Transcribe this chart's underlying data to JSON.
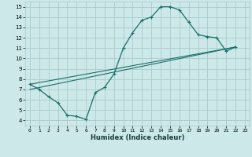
{
  "xlabel": "Humidex (Indice chaleur)",
  "bg_color": "#cce8e8",
  "grid_color": "#aacccc",
  "line_color": "#1a6e6a",
  "xlim": [
    -0.5,
    23.5
  ],
  "ylim": [
    3.5,
    15.5
  ],
  "xticks": [
    0,
    1,
    2,
    3,
    4,
    5,
    6,
    7,
    8,
    9,
    10,
    11,
    12,
    13,
    14,
    15,
    16,
    17,
    18,
    19,
    20,
    21,
    22,
    23
  ],
  "yticks": [
    4,
    5,
    6,
    7,
    8,
    9,
    10,
    11,
    12,
    13,
    14,
    15
  ],
  "main_x": [
    0,
    1,
    2,
    3,
    4,
    5,
    6,
    7,
    8,
    9,
    10,
    11,
    12,
    13,
    14,
    15,
    16,
    17,
    18,
    19,
    20,
    21,
    22
  ],
  "main_y": [
    7.5,
    7.0,
    6.3,
    5.7,
    4.5,
    4.4,
    4.1,
    6.7,
    7.2,
    8.5,
    11.0,
    12.5,
    13.7,
    14.0,
    15.0,
    15.0,
    14.7,
    13.5,
    12.3,
    12.1,
    12.0,
    10.7,
    11.1
  ],
  "trend1_x": [
    0,
    22
  ],
  "trend1_y": [
    7.5,
    11.1
  ],
  "trend2_x": [
    0,
    22
  ],
  "trend2_y": [
    7.0,
    11.1
  ]
}
